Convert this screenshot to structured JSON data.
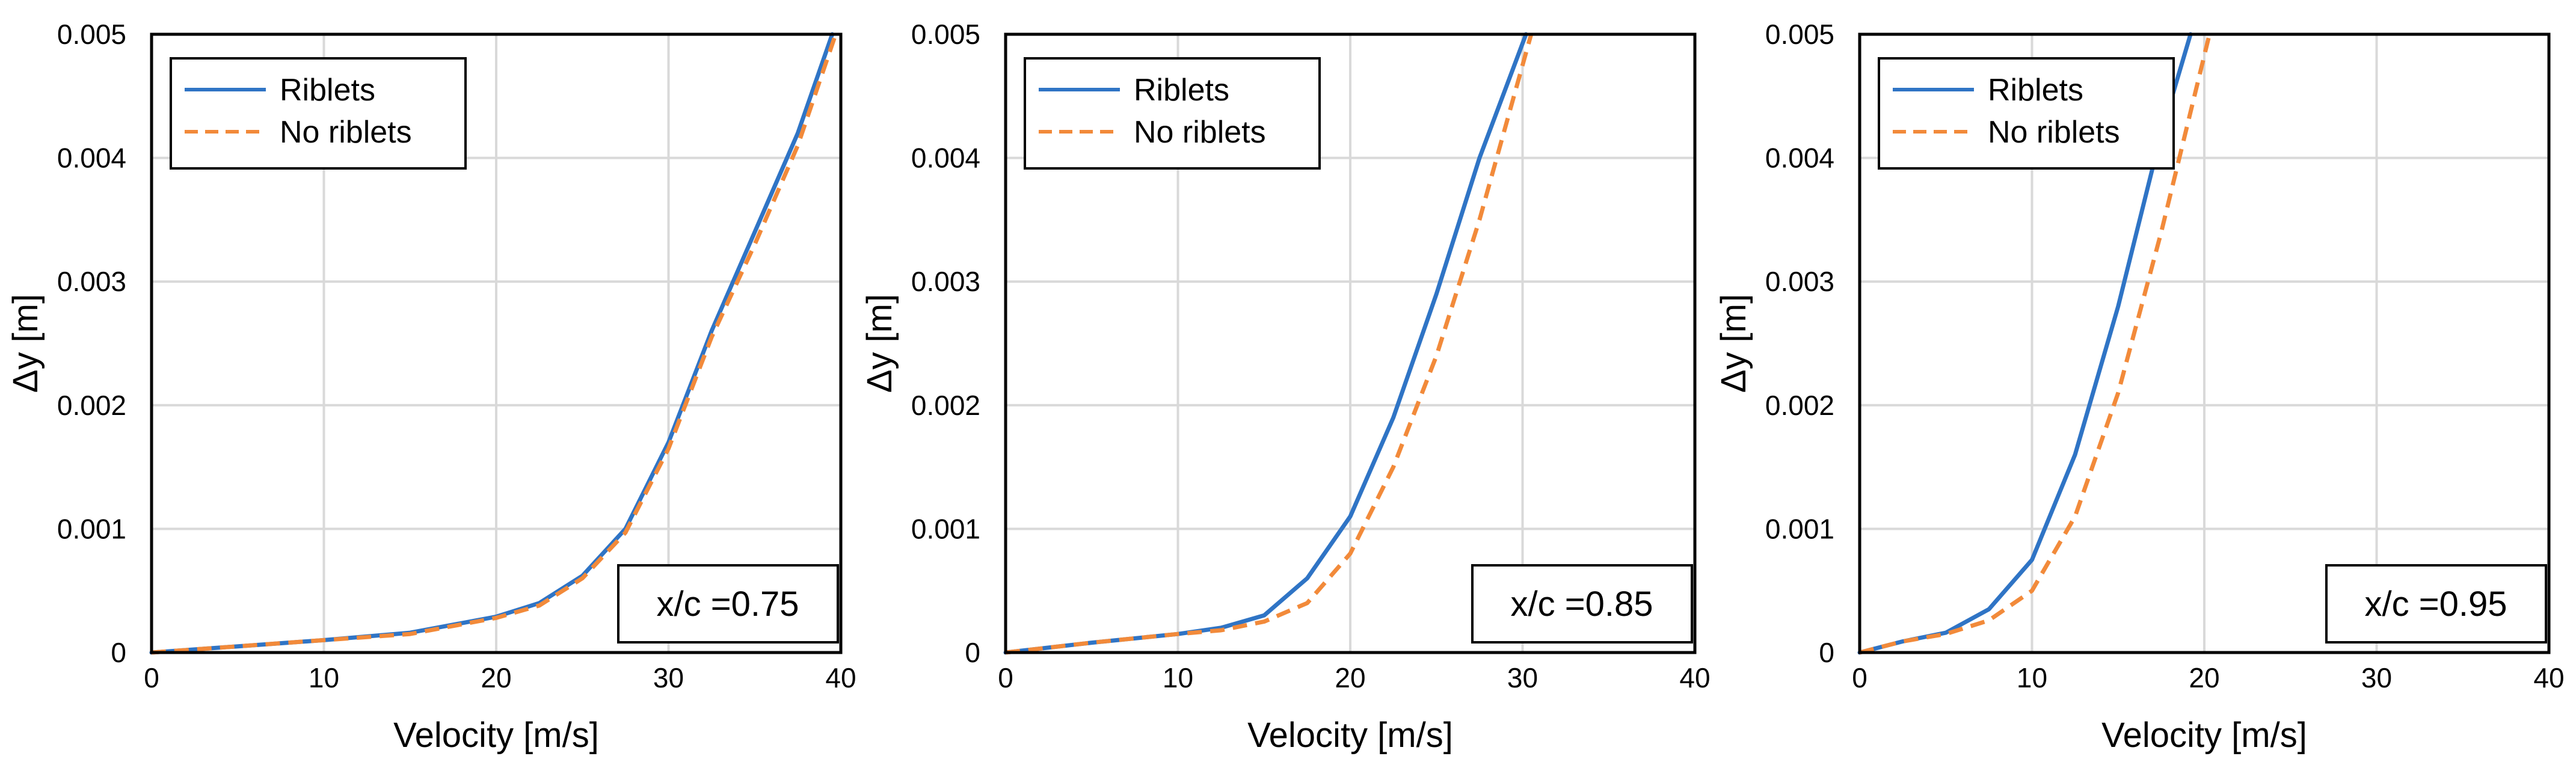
{
  "colors": {
    "riblets": "#2f74c5",
    "no_riblets": "#f28a3a",
    "grid": "#d9d9d9"
  },
  "chart_data": [
    {
      "type": "line",
      "xlabel": "Velocity [m/s]",
      "ylabel": "Δy [m]",
      "xlim": [
        0,
        40
      ],
      "ylim": [
        0,
        0.005
      ],
      "xticks": [
        "0",
        "10",
        "20",
        "30",
        "40"
      ],
      "yticks": [
        "0",
        "0.001",
        "0.002",
        "0.003",
        "0.004",
        "0.005"
      ],
      "grid": true,
      "legend": "top-left",
      "annotation": "x/c =0.75",
      "series": [
        {
          "name": "Riblets",
          "style": "solid",
          "x": [
            0,
            5,
            10,
            15,
            20,
            22.5,
            25,
            27.5,
            30,
            32.5,
            35,
            37.5,
            39.5
          ],
          "y": [
            0,
            5e-05,
            0.0001,
            0.00016,
            0.00029,
            0.0004,
            0.00062,
            0.001,
            0.0017,
            0.0026,
            0.0034,
            0.0042,
            0.005
          ]
        },
        {
          "name": "No riblets",
          "style": "dashed",
          "x": [
            0,
            5,
            10,
            15,
            20,
            22.5,
            25,
            27.5,
            30,
            32.5,
            35,
            37.5,
            39.7
          ],
          "y": [
            0,
            5e-05,
            0.0001,
            0.00015,
            0.00028,
            0.00038,
            0.0006,
            0.00097,
            0.00165,
            0.00255,
            0.0033,
            0.0041,
            0.005
          ]
        }
      ]
    },
    {
      "type": "line",
      "xlabel": "Velocity [m/s]",
      "ylabel": "Δy [m]",
      "xlim": [
        0,
        40
      ],
      "ylim": [
        0,
        0.005
      ],
      "xticks": [
        "0",
        "10",
        "20",
        "30",
        "40"
      ],
      "yticks": [
        "0",
        "0.001",
        "0.002",
        "0.003",
        "0.004",
        "0.005"
      ],
      "grid": true,
      "legend": "top-left",
      "annotation": "x/c =0.85",
      "series": [
        {
          "name": "Riblets",
          "style": "solid",
          "x": [
            0,
            5,
            10,
            12.5,
            15,
            17.5,
            20,
            22.5,
            25,
            27.5,
            30.2
          ],
          "y": [
            0,
            8e-05,
            0.00015,
            0.0002,
            0.0003,
            0.0006,
            0.0011,
            0.0019,
            0.0029,
            0.004,
            0.005
          ]
        },
        {
          "name": "No riblets",
          "style": "dashed",
          "x": [
            0,
            5,
            10,
            12.5,
            15,
            17.5,
            20,
            22.5,
            25,
            27.5,
            30.5
          ],
          "y": [
            0,
            8e-05,
            0.00015,
            0.00018,
            0.00025,
            0.0004,
            0.0008,
            0.0015,
            0.0024,
            0.0035,
            0.005
          ]
        }
      ]
    },
    {
      "type": "line",
      "xlabel": "Velocity [m/s]",
      "ylabel": "Δy [m]",
      "xlim": [
        0,
        40
      ],
      "ylim": [
        0,
        0.005
      ],
      "xticks": [
        "0",
        "10",
        "20",
        "30",
        "40"
      ],
      "yticks": [
        "0",
        "0.001",
        "0.002",
        "0.003",
        "0.004",
        "0.005"
      ],
      "grid": true,
      "legend": "top-left",
      "annotation": "x/c =0.95",
      "series": [
        {
          "name": "Riblets",
          "style": "solid",
          "x": [
            0,
            2.5,
            5,
            7.5,
            10,
            12.5,
            15,
            17.5,
            19.2
          ],
          "y": [
            0,
            9e-05,
            0.00016,
            0.00035,
            0.00075,
            0.0016,
            0.0028,
            0.0042,
            0.005
          ]
        },
        {
          "name": "No riblets",
          "style": "dashed",
          "x": [
            0,
            2.5,
            5,
            7.5,
            10,
            12.5,
            15,
            17.5,
            20.3
          ],
          "y": [
            0,
            9e-05,
            0.00015,
            0.00026,
            0.0005,
            0.0011,
            0.0021,
            0.0034,
            0.005
          ]
        }
      ]
    }
  ]
}
